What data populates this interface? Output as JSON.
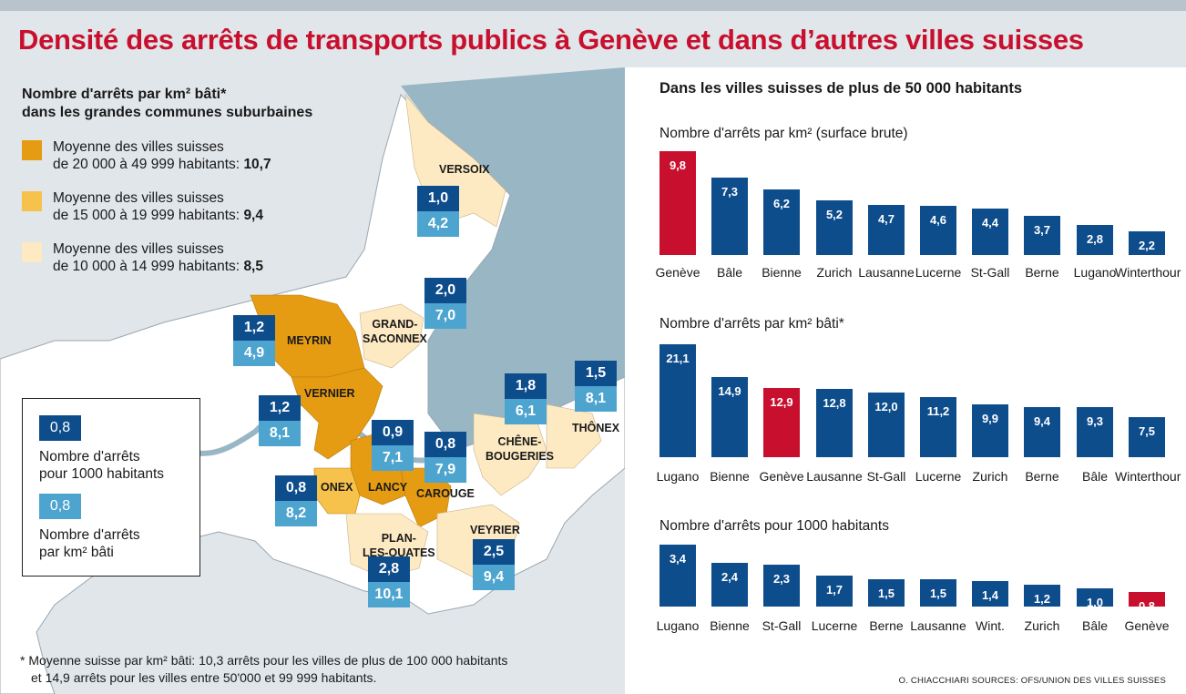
{
  "title": "Densité des arrêts de transports publics à Genève et dans d’autres villes suisses",
  "left": {
    "heading_line1": "Nombre d'arrêts par km² bâti*",
    "heading_line2": "dans les grandes communes suburbaines",
    "legend": [
      {
        "line1": "Moyenne des villes suisses",
        "line2": "de 20 000 à 49 999 habitants: ",
        "value": "10,7",
        "color": "#e59b12"
      },
      {
        "line1": "Moyenne des villes suisses",
        "line2": "de 15 000 à 19 999 habitants: ",
        "value": "9,4",
        "color": "#f7c24b"
      },
      {
        "line1": "Moyenne des villes suisses",
        "line2": "de 10 000 à 14 999 habitants: ",
        "value": "8,5",
        "color": "#fde9c2"
      }
    ],
    "key": {
      "sample_value": "0,8",
      "label_per1000_line1": "Nombre d'arrêts",
      "label_per1000_line2": "pour 1000 habitants",
      "label_perkm_line1": "Nombre d'arrêts",
      "label_perkm_line2": "par km² bâti"
    },
    "communes": [
      {
        "name": "VERSOIX",
        "per1000": "1,0",
        "perkm": "4,2"
      },
      {
        "name": "GRAND-SACONNEX",
        "name_line1": "GRAND-",
        "name_line2": "SACONNEX",
        "per1000": "2,0",
        "perkm": "7,0"
      },
      {
        "name": "MEYRIN",
        "per1000": "1,2",
        "perkm": "4,9"
      },
      {
        "name": "VERNIER",
        "per1000": "1,2",
        "perkm": "8,1"
      },
      {
        "name": "CHÊNE-BOUGERIES",
        "name_line1": "CHÊNE-",
        "name_line2": "BOUGERIES",
        "per1000": "1,8",
        "perkm": "6,1"
      },
      {
        "name": "THÔNEX",
        "per1000": "1,5",
        "perkm": "8,1"
      },
      {
        "name": "LANCY",
        "per1000": "0,9",
        "perkm": "7,1"
      },
      {
        "name": "CAROUGE",
        "per1000": "0,8",
        "perkm": "7,9"
      },
      {
        "name": "ONEX",
        "per1000": "0,8",
        "perkm": "8,2"
      },
      {
        "name": "PLAN-LES-OUATES",
        "name_line1": "PLAN-",
        "name_line2": "LES-OUATES",
        "per1000": "2,8",
        "perkm": "10,1"
      },
      {
        "name": "VEYRIER",
        "per1000": "2,5",
        "perkm": "9,4"
      }
    ],
    "footnote_line1": "* Moyenne suisse par km² bâti: 10,3 arrêts pour les villes de plus de 100 000 habitants",
    "footnote_line2": "et 14,9 arrêts pour les villes entre 50'000 et 99 999 habitants."
  },
  "right": {
    "heading": "Dans les villes suisses de plus de 50 000 habitants"
  },
  "credit": "O. CHIACCHIARI   SOURCES: OFS/UNION DES VILLES SUISSES",
  "colors": {
    "blue": "#0e4d8c",
    "light_blue": "#4da4cf",
    "red": "#c8102e",
    "lake": "#98b6c4"
  },
  "chart_data": [
    {
      "type": "bar",
      "title": "Nombre d'arrêts par km² (surface brute)",
      "categories": [
        "Genève",
        "Bâle",
        "Bienne",
        "Zurich",
        "Lausanne",
        "Lucerne",
        "St-Gall",
        "Berne",
        "Lugano",
        "Winterthour"
      ],
      "values": [
        9.8,
        7.3,
        6.2,
        5.2,
        4.7,
        4.6,
        4.4,
        3.7,
        2.8,
        2.2
      ],
      "labels": [
        "9,8",
        "7,3",
        "6,2",
        "5,2",
        "4,7",
        "4,6",
        "4,4",
        "3,7",
        "2,8",
        "2,2"
      ],
      "highlight": "Genève",
      "ylim": [
        0,
        9.8
      ]
    },
    {
      "type": "bar",
      "title": "Nombre d'arrêts par km² bâti*",
      "categories": [
        "Lugano",
        "Bienne",
        "Genève",
        "Lausanne",
        "St-Gall",
        "Lucerne",
        "Zurich",
        "Berne",
        "Bâle",
        "Winterthour"
      ],
      "values": [
        21.1,
        14.9,
        12.9,
        12.8,
        12.0,
        11.2,
        9.9,
        9.4,
        9.3,
        7.5
      ],
      "labels": [
        "21,1",
        "14,9",
        "12,9",
        "12,8",
        "12,0",
        "11,2",
        "9,9",
        "9,4",
        "9,3",
        "7,5"
      ],
      "highlight": "Genève",
      "ylim": [
        0,
        21.1
      ]
    },
    {
      "type": "bar",
      "title": "Nombre d'arrêts pour 1000 habitants",
      "categories": [
        "Lugano",
        "Bienne",
        "St-Gall",
        "Lucerne",
        "Berne",
        "Lausanne",
        "Wint.",
        "Zurich",
        "Bâle",
        "Genève"
      ],
      "values": [
        3.4,
        2.4,
        2.3,
        1.7,
        1.5,
        1.5,
        1.4,
        1.2,
        1.0,
        0.8
      ],
      "labels": [
        "3,4",
        "2,4",
        "2,3",
        "1,7",
        "1,5",
        "1,5",
        "1,4",
        "1,2",
        "1,0",
        "0,8"
      ],
      "highlight": "Genève",
      "ylim": [
        0,
        3.4
      ]
    }
  ]
}
